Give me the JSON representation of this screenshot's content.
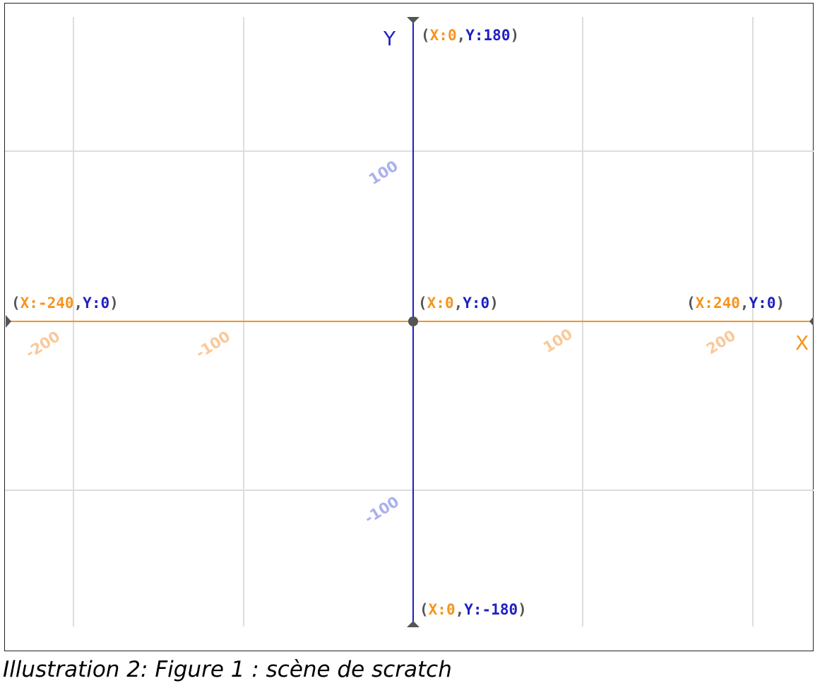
{
  "axes": {
    "x_label": "X",
    "y_label": "Y",
    "x_ticks": [
      "-200",
      "-100",
      "100",
      "200"
    ],
    "y_ticks": [
      "100",
      "-100"
    ],
    "x_range": [
      -240,
      240
    ],
    "y_range": [
      -180,
      180
    ]
  },
  "points": {
    "top": {
      "x_text": "X:0",
      "y_text": "Y:180"
    },
    "left": {
      "x_text": "X:-240",
      "y_text": "Y:0"
    },
    "origin": {
      "x_text": "X:0",
      "y_text": "Y:0"
    },
    "right": {
      "x_text": "X:240",
      "y_text": "Y:0"
    },
    "bottom": {
      "x_text": "X:0",
      "y_text": "Y:-180"
    }
  },
  "colors": {
    "x_axis": "#f7941d",
    "y_axis": "#1f1fc4",
    "grid": "#dddddd",
    "paren": "#555555",
    "x_tick": "#f9c99a",
    "y_tick": "#aab0f0"
  },
  "caption": "Illustration 2: Figure 1 : scène de scratch"
}
